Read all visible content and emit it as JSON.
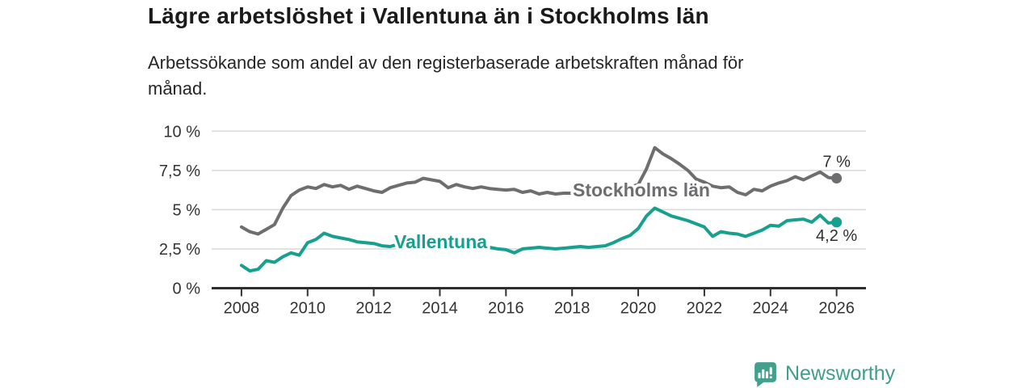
{
  "header": {
    "title": "Lägre arbetslöshet i Vallentuna än i Stockholms län",
    "subtitle": "Arbetssökande som andel av den registerbaserade arbetskraften månad för\nmånad."
  },
  "footer": {
    "brand": "Newsworthy",
    "logo_icon_name": "newsworthy-speech-bubble-bar-chart-icon"
  },
  "colors": {
    "stockholm_gray": "#6e6e70",
    "vallentuna_teal": "#18a08e",
    "axis_text": "#333333",
    "grid_line": "#d9d9d9",
    "axis_line": "#2e2e2e",
    "end_label_text": "#2f2f2f",
    "brand_teal": "#42a08d",
    "background": "#ffffff"
  },
  "chart_data": {
    "type": "line",
    "title": "Lägre arbetslöshet i Vallentuna än i Stockholms län",
    "xlabel": "",
    "ylabel": "",
    "xlim": [
      2007.6,
      2027
    ],
    "ylim": [
      0,
      10
    ],
    "grid": true,
    "legend_position": "inline-labels-on-lines",
    "x_start": 2008,
    "x_step": 0.25,
    "x_ticks": [
      {
        "label": "2008",
        "value": 2008
      },
      {
        "label": "2010",
        "value": 2010
      },
      {
        "label": "2012",
        "value": 2012
      },
      {
        "label": "2014",
        "value": 2014
      },
      {
        "label": "2016",
        "value": 2016
      },
      {
        "label": "2018",
        "value": 2018
      },
      {
        "label": "2020",
        "value": 2020
      },
      {
        "label": "2022",
        "value": 2022
      },
      {
        "label": "2024",
        "value": 2024
      },
      {
        "label": "2026",
        "value": 2026
      }
    ],
    "y_ticks": [
      {
        "label": "10 %",
        "value": 10
      },
      {
        "label": "7,5 %",
        "value": 7.5
      },
      {
        "label": "5 %",
        "value": 5
      },
      {
        "label": "2,5 %",
        "value": 2.5
      },
      {
        "label": "0 %",
        "value": 0
      }
    ],
    "series": [
      {
        "name": "Stockholms län",
        "color": "#6e6e70",
        "end_label": "7 %",
        "end_value": 7.0,
        "values": [
          3.9,
          3.6,
          3.45,
          3.75,
          4.05,
          5.1,
          5.9,
          6.25,
          6.45,
          6.35,
          6.6,
          6.45,
          6.55,
          6.3,
          6.5,
          6.35,
          6.2,
          6.1,
          6.4,
          6.55,
          6.7,
          6.75,
          7.0,
          6.9,
          6.8,
          6.4,
          6.6,
          6.45,
          6.35,
          6.45,
          6.35,
          6.3,
          6.25,
          6.3,
          6.1,
          6.2,
          6.0,
          6.1,
          6.0,
          6.05,
          6.05,
          6.1,
          6.1,
          6.15,
          6.2,
          6.25,
          6.3,
          6.45,
          6.6,
          7.6,
          8.95,
          8.55,
          8.25,
          7.9,
          7.5,
          6.95,
          6.75,
          6.5,
          6.4,
          6.45,
          6.1,
          5.95,
          6.3,
          6.2,
          6.5,
          6.7,
          6.85,
          7.1,
          6.9,
          7.15,
          7.4,
          7.05,
          7.0
        ]
      },
      {
        "name": "Vallentuna",
        "color": "#18a08e",
        "end_label": "4,2 %",
        "end_value": 4.2,
        "values": [
          1.45,
          1.1,
          1.2,
          1.75,
          1.65,
          2.0,
          2.25,
          2.1,
          2.9,
          3.1,
          3.5,
          3.3,
          3.2,
          3.1,
          2.95,
          2.9,
          2.85,
          2.7,
          2.65,
          2.8,
          2.75,
          2.8,
          2.75,
          2.7,
          2.6,
          2.55,
          2.5,
          2.55,
          2.5,
          2.55,
          2.6,
          2.5,
          2.45,
          2.25,
          2.5,
          2.55,
          2.6,
          2.55,
          2.5,
          2.55,
          2.6,
          2.65,
          2.6,
          2.65,
          2.7,
          2.9,
          3.15,
          3.35,
          3.8,
          4.6,
          5.1,
          4.85,
          4.6,
          4.45,
          4.3,
          4.1,
          3.9,
          3.3,
          3.6,
          3.5,
          3.45,
          3.3,
          3.5,
          3.7,
          4.0,
          3.95,
          4.3,
          4.35,
          4.4,
          4.2,
          4.65,
          4.15,
          4.2
        ]
      }
    ]
  }
}
